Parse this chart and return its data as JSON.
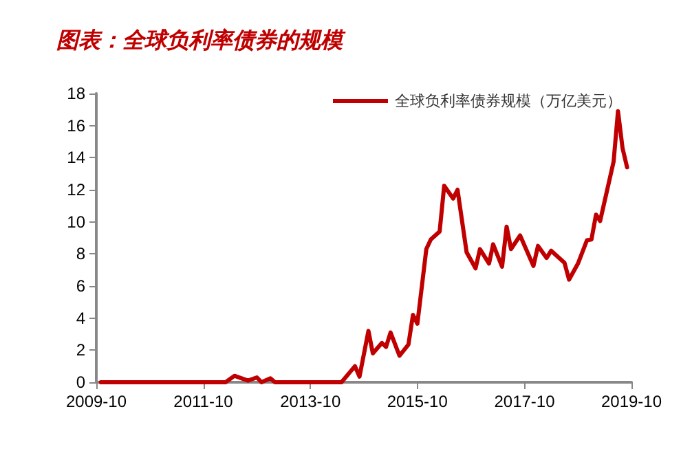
{
  "chart_data": {
    "type": "line",
    "title": "图表：全球负利率债券的规模",
    "legend": "top right",
    "grid": false,
    "marker": "none",
    "line_style": "solid",
    "x": [
      "2009-11",
      "2010-06",
      "2011-06",
      "2012-03",
      "2012-05",
      "2012-08",
      "2012-10",
      "2012-11",
      "2013-01",
      "2013-02",
      "2014-05",
      "2014-08",
      "2014-09",
      "2014-11",
      "2014-12",
      "2015-02",
      "2015-03",
      "2015-04",
      "2015-06",
      "2015-08",
      "2015-09",
      "2015-10",
      "2015-12",
      "2016-01",
      "2016-03",
      "2016-04",
      "2016-06",
      "2016-07",
      "2016-09",
      "2016-11",
      "2016-12",
      "2017-02",
      "2017-03",
      "2017-05",
      "2017-06",
      "2017-07",
      "2017-09",
      "2017-12",
      "2018-01",
      "2018-03",
      "2018-04",
      "2018-07",
      "2018-08",
      "2018-10",
      "2018-12",
      "2019-01",
      "2019-02",
      "2019-03",
      "2019-06",
      "2019-07",
      "2019-08",
      "2019-09"
    ],
    "series": [
      {
        "name": "全球负利率债券规模（万亿美元）",
        "color": "#c00000",
        "values": [
          0,
          0,
          0,
          0,
          0.4,
          0.1,
          0.3,
          0,
          0.25,
          0,
          0,
          1.0,
          0.35,
          3.2,
          1.8,
          2.45,
          2.2,
          3.1,
          1.65,
          2.35,
          4.2,
          3.65,
          8.3,
          8.9,
          9.4,
          12.25,
          11.45,
          12.0,
          8.1,
          7.1,
          8.3,
          7.4,
          8.6,
          7.2,
          9.7,
          8.3,
          9.15,
          7.25,
          8.5,
          7.75,
          8.2,
          7.45,
          6.4,
          7.4,
          8.85,
          8.9,
          10.45,
          10.05,
          13.75,
          16.9,
          14.6,
          13.4
        ]
      }
    ],
    "xlim": [
      "2009-10",
      "2019-10"
    ],
    "xticks": [
      "2009-10",
      "2011-10",
      "2013-10",
      "2015-10",
      "2017-10",
      "2019-10"
    ],
    "ylim": [
      0,
      18
    ],
    "yticks": [
      0,
      2,
      4,
      6,
      8,
      10,
      12,
      14,
      16,
      18
    ]
  }
}
